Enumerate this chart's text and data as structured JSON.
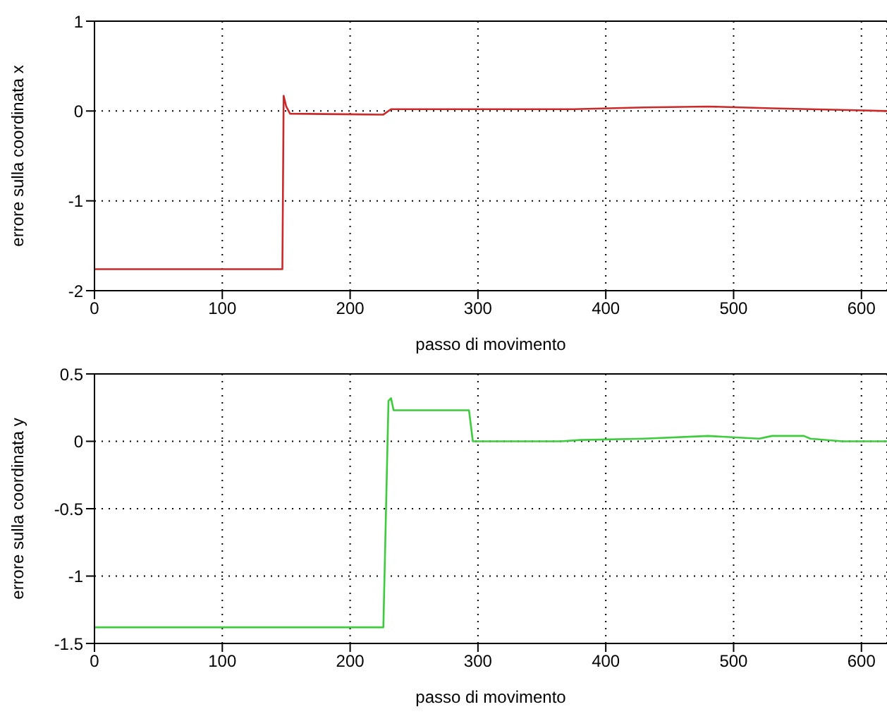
{
  "chart_data": [
    {
      "type": "line",
      "xlabel": "passo di movimento",
      "ylabel": "errore sulla coordinata x",
      "x": [
        0,
        147,
        148,
        150,
        153,
        226,
        232,
        310,
        375,
        430,
        480,
        530,
        590,
        620
      ],
      "series": [
        {
          "color": "#cc2a2a",
          "values": [
            -1.76,
            -1.76,
            0.17,
            0.05,
            -0.03,
            -0.04,
            0.02,
            0.02,
            0.02,
            0.04,
            0.05,
            0.03,
            0.01,
            0.0
          ]
        }
      ],
      "xlim": [
        0,
        620
      ],
      "xticks": [
        0,
        100,
        200,
        300,
        400,
        500,
        600
      ],
      "ylim": [
        -2,
        1
      ],
      "yticks": [
        -2,
        -1,
        0,
        1
      ],
      "grid": true
    },
    {
      "type": "line",
      "xlabel": "passo di movimento",
      "ylabel": "errore sulla coordinata y",
      "x": [
        0,
        226,
        230,
        232,
        234,
        293,
        296,
        310,
        365,
        380,
        430,
        480,
        520,
        530,
        555,
        560,
        585,
        620
      ],
      "series": [
        {
          "color": "#3ccc3c",
          "values": [
            -1.38,
            -1.38,
            0.3,
            0.32,
            0.23,
            0.23,
            0.0,
            0.0,
            0.0,
            0.01,
            0.02,
            0.04,
            0.02,
            0.04,
            0.04,
            0.02,
            0.0,
            0.0
          ]
        }
      ],
      "xlim": [
        0,
        620
      ],
      "xticks": [
        0,
        100,
        200,
        300,
        400,
        500,
        600
      ],
      "ylim": [
        -1.5,
        0.5
      ],
      "yticks": [
        -1.5,
        -1,
        -0.5,
        0,
        0.5
      ],
      "grid": true
    }
  ]
}
